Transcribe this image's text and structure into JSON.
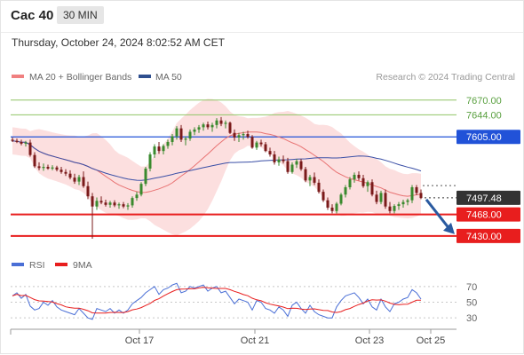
{
  "header": {
    "symbol": "Cac 40",
    "interval": "30 MIN"
  },
  "timestamp": "Thursday, October 24, 2024 8:02:52 AM CET",
  "legend": {
    "ma20_bb": "MA 20 + Bollinger Bands",
    "ma50": "MA 50",
    "credit": "Research © 2024 Trading Central"
  },
  "rsi_legend": {
    "rsi": "RSI",
    "ma9": "9MA"
  },
  "colors": {
    "resistance": "#8fc464",
    "pivot": "#2152d8",
    "support": "#e81e1e",
    "price_tag": "#333333",
    "candle_up": "#3a8a2e",
    "candle_down": "#7a1a1a",
    "ma20": "#e87272",
    "ma50": "#3a4fa6",
    "bollinger_fill": "#fbd9d9",
    "forecast_arrow": "#2a5aa0",
    "rsi_line": "#4a6fd6",
    "rsi_ma": "#e81e1e"
  },
  "chart_data": [
    {
      "type": "candlestick",
      "ylim": [
        7400,
        7690
      ],
      "x_ticks": [
        "Oct 17",
        "Oct 21",
        "Oct 23",
        "Oct 25"
      ],
      "levels": [
        {
          "value": 7670.0,
          "label": "7670.00",
          "kind": "resistance"
        },
        {
          "value": 7644.0,
          "label": "7644.00",
          "kind": "resistance"
        },
        {
          "value": 7605.0,
          "label": "7605.00",
          "kind": "pivot"
        },
        {
          "value": 7468.0,
          "label": "7468.00",
          "kind": "support"
        },
        {
          "value": 7430.0,
          "label": "7430.00",
          "kind": "support"
        }
      ],
      "last_price": {
        "value": 7497.48,
        "label": "7497.48"
      },
      "candles": [
        [
          7600,
          7604,
          7596,
          7598
        ],
        [
          7598,
          7602,
          7594,
          7596
        ],
        [
          7596,
          7600,
          7590,
          7593
        ],
        [
          7593,
          7598,
          7588,
          7595
        ],
        [
          7595,
          7600,
          7570,
          7573
        ],
        [
          7573,
          7578,
          7550,
          7553
        ],
        [
          7553,
          7560,
          7546,
          7550
        ],
        [
          7550,
          7558,
          7545,
          7552
        ],
        [
          7552,
          7556,
          7547,
          7549
        ],
        [
          7549,
          7555,
          7546,
          7551
        ],
        [
          7551,
          7554,
          7544,
          7547
        ],
        [
          7547,
          7552,
          7540,
          7543
        ],
        [
          7543,
          7548,
          7536,
          7540
        ],
        [
          7540,
          7546,
          7530,
          7533
        ],
        [
          7533,
          7540,
          7522,
          7526
        ],
        [
          7526,
          7538,
          7520,
          7534
        ],
        [
          7534,
          7544,
          7515,
          7518
        ],
        [
          7518,
          7526,
          7495,
          7500
        ],
        [
          7500,
          7506,
          7425,
          7482
        ],
        [
          7482,
          7498,
          7476,
          7492
        ],
        [
          7492,
          7500,
          7486,
          7489
        ],
        [
          7489,
          7494,
          7482,
          7485
        ],
        [
          7485,
          7492,
          7480,
          7489
        ],
        [
          7489,
          7493,
          7481,
          7484
        ],
        [
          7484,
          7489,
          7478,
          7486
        ],
        [
          7486,
          7490,
          7479,
          7482
        ],
        [
          7482,
          7488,
          7476,
          7484
        ],
        [
          7484,
          7500,
          7480,
          7497
        ],
        [
          7497,
          7508,
          7492,
          7503
        ],
        [
          7503,
          7525,
          7500,
          7522
        ],
        [
          7522,
          7552,
          7518,
          7549
        ],
        [
          7549,
          7578,
          7544,
          7574
        ],
        [
          7574,
          7592,
          7568,
          7588
        ],
        [
          7588,
          7596,
          7575,
          7580
        ],
        [
          7580,
          7592,
          7574,
          7589
        ],
        [
          7589,
          7600,
          7584,
          7596
        ],
        [
          7596,
          7610,
          7590,
          7606
        ],
        [
          7606,
          7624,
          7600,
          7620
        ],
        [
          7620,
          7626,
          7596,
          7600
        ],
        [
          7600,
          7606,
          7590,
          7602
        ],
        [
          7602,
          7618,
          7598,
          7614
        ],
        [
          7614,
          7622,
          7608,
          7618
        ],
        [
          7618,
          7626,
          7612,
          7622
        ],
        [
          7622,
          7630,
          7616,
          7627
        ],
        [
          7627,
          7632,
          7618,
          7622
        ],
        [
          7622,
          7630,
          7614,
          7626
        ],
        [
          7626,
          7638,
          7620,
          7634
        ],
        [
          7634,
          7640,
          7624,
          7628
        ],
        [
          7628,
          7634,
          7620,
          7630
        ],
        [
          7630,
          7632,
          7610,
          7612
        ],
        [
          7612,
          7618,
          7598,
          7604
        ],
        [
          7604,
          7612,
          7596,
          7608
        ],
        [
          7608,
          7614,
          7600,
          7610
        ],
        [
          7610,
          7616,
          7602,
          7605
        ],
        [
          7605,
          7608,
          7584,
          7586
        ],
        [
          7586,
          7598,
          7582,
          7595
        ],
        [
          7595,
          7600,
          7588,
          7592
        ],
        [
          7592,
          7596,
          7578,
          7580
        ],
        [
          7580,
          7586,
          7570,
          7574
        ],
        [
          7574,
          7580,
          7556,
          7560
        ],
        [
          7560,
          7570,
          7554,
          7565
        ],
        [
          7565,
          7572,
          7558,
          7562
        ],
        [
          7562,
          7568,
          7540,
          7543
        ],
        [
          7543,
          7560,
          7540,
          7556
        ],
        [
          7556,
          7566,
          7550,
          7562
        ],
        [
          7562,
          7566,
          7545,
          7548
        ],
        [
          7548,
          7552,
          7525,
          7528
        ],
        [
          7528,
          7538,
          7518,
          7534
        ],
        [
          7534,
          7542,
          7520,
          7524
        ],
        [
          7524,
          7530,
          7505,
          7508
        ],
        [
          7508,
          7512,
          7490,
          7493
        ],
        [
          7493,
          7498,
          7476,
          7480
        ],
        [
          7480,
          7486,
          7470,
          7474
        ],
        [
          7474,
          7490,
          7470,
          7487
        ],
        [
          7487,
          7506,
          7484,
          7503
        ],
        [
          7503,
          7520,
          7498,
          7516
        ],
        [
          7516,
          7534,
          7512,
          7530
        ],
        [
          7530,
          7542,
          7524,
          7538
        ],
        [
          7538,
          7544,
          7528,
          7532
        ],
        [
          7532,
          7538,
          7515,
          7518
        ],
        [
          7518,
          7528,
          7508,
          7525
        ],
        [
          7525,
          7530,
          7500,
          7503
        ],
        [
          7503,
          7510,
          7486,
          7490
        ],
        [
          7490,
          7510,
          7486,
          7506
        ],
        [
          7506,
          7512,
          7478,
          7482
        ],
        [
          7482,
          7490,
          7470,
          7474
        ],
        [
          7474,
          7486,
          7470,
          7483
        ],
        [
          7483,
          7490,
          7476,
          7486
        ],
        [
          7486,
          7494,
          7480,
          7490
        ],
        [
          7490,
          7496,
          7484,
          7493
        ],
        [
          7493,
          7520,
          7488,
          7516
        ],
        [
          7516,
          7520,
          7502,
          7506
        ],
        [
          7506,
          7512,
          7495,
          7497
        ]
      ]
    },
    {
      "type": "line",
      "name": "RSI",
      "ylim": [
        20,
        80
      ],
      "y_ticks": [
        70,
        50,
        30
      ],
      "values": [
        58,
        62,
        55,
        60,
        45,
        40,
        42,
        50,
        46,
        52,
        44,
        40,
        38,
        36,
        34,
        42,
        36,
        30,
        28,
        42,
        40,
        38,
        42,
        36,
        40,
        36,
        40,
        48,
        52,
        56,
        62,
        66,
        70,
        60,
        66,
        68,
        72,
        74,
        62,
        64,
        70,
        68,
        70,
        72,
        64,
        68,
        70,
        62,
        64,
        56,
        48,
        54,
        52,
        50,
        40,
        52,
        50,
        42,
        40,
        36,
        44,
        40,
        32,
        46,
        50,
        42,
        36,
        46,
        38,
        34,
        32,
        30,
        30,
        44,
        52,
        58,
        60,
        62,
        56,
        48,
        54,
        44,
        40,
        54,
        44,
        38,
        48,
        50,
        54,
        56,
        66,
        62,
        54
      ]
    }
  ]
}
